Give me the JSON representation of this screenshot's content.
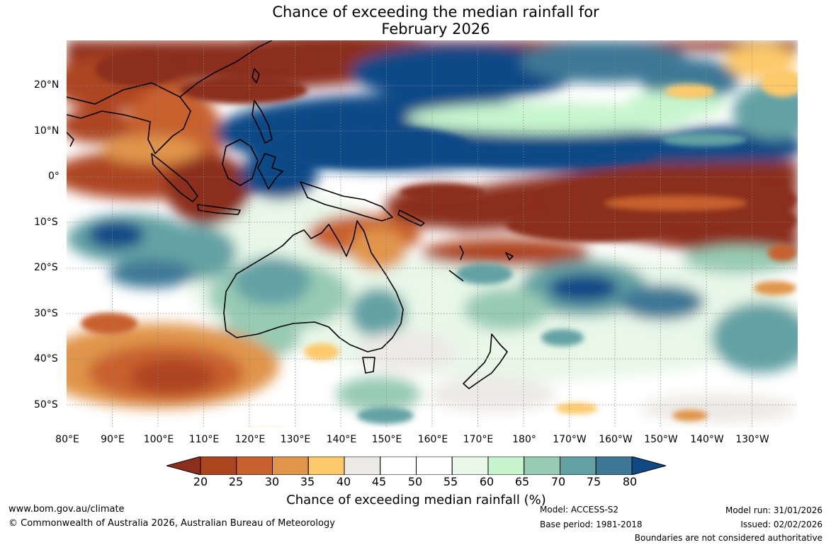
{
  "title": {
    "line1": "Chance of exceeding the median rainfall for",
    "line2": "February 2026"
  },
  "axes": {
    "lat_labels": [
      "20°N",
      "10°N",
      "0°",
      "10°S",
      "20°S",
      "30°S",
      "40°S",
      "50°S"
    ],
    "lon_labels": [
      "80°E",
      "90°E",
      "100°E",
      "110°E",
      "120°E",
      "130°E",
      "140°E",
      "150°E",
      "160°E",
      "170°E",
      "180°",
      "170°W",
      "160°W",
      "150°W",
      "140°W",
      "130°W"
    ],
    "lat_range": [
      -55,
      30
    ],
    "lon_range": [
      80,
      240
    ]
  },
  "colorbar": {
    "title": "Chance of exceeding median rainfall (%)",
    "ticks": [
      "20",
      "25",
      "30",
      "35",
      "40",
      "45",
      "50",
      "55",
      "60",
      "65",
      "70",
      "75",
      "80"
    ],
    "colors": [
      "#8b2e1c",
      "#ad4420",
      "#c8612f",
      "#e0954b",
      "#fdc96b",
      "#eceae6",
      "#ffffff",
      "#ffffff",
      "#e8f7e8",
      "#c6f5cd",
      "#98cbb4",
      "#63a2a4",
      "#3e7895",
      "#0f4a86"
    ]
  },
  "footer": {
    "url": "www.bom.gov.au/climate",
    "copyright": "© Commonwealth of Australia 2026, Australian Bureau of Meteorology",
    "model": "Model: ACCESS-S2",
    "base_period": "Base period: 1981-2018",
    "model_run": "Model run: 31/01/2026",
    "issued": "Issued: 02/02/2026",
    "disclaimer": "Boundaries are not considered authoritative"
  }
}
